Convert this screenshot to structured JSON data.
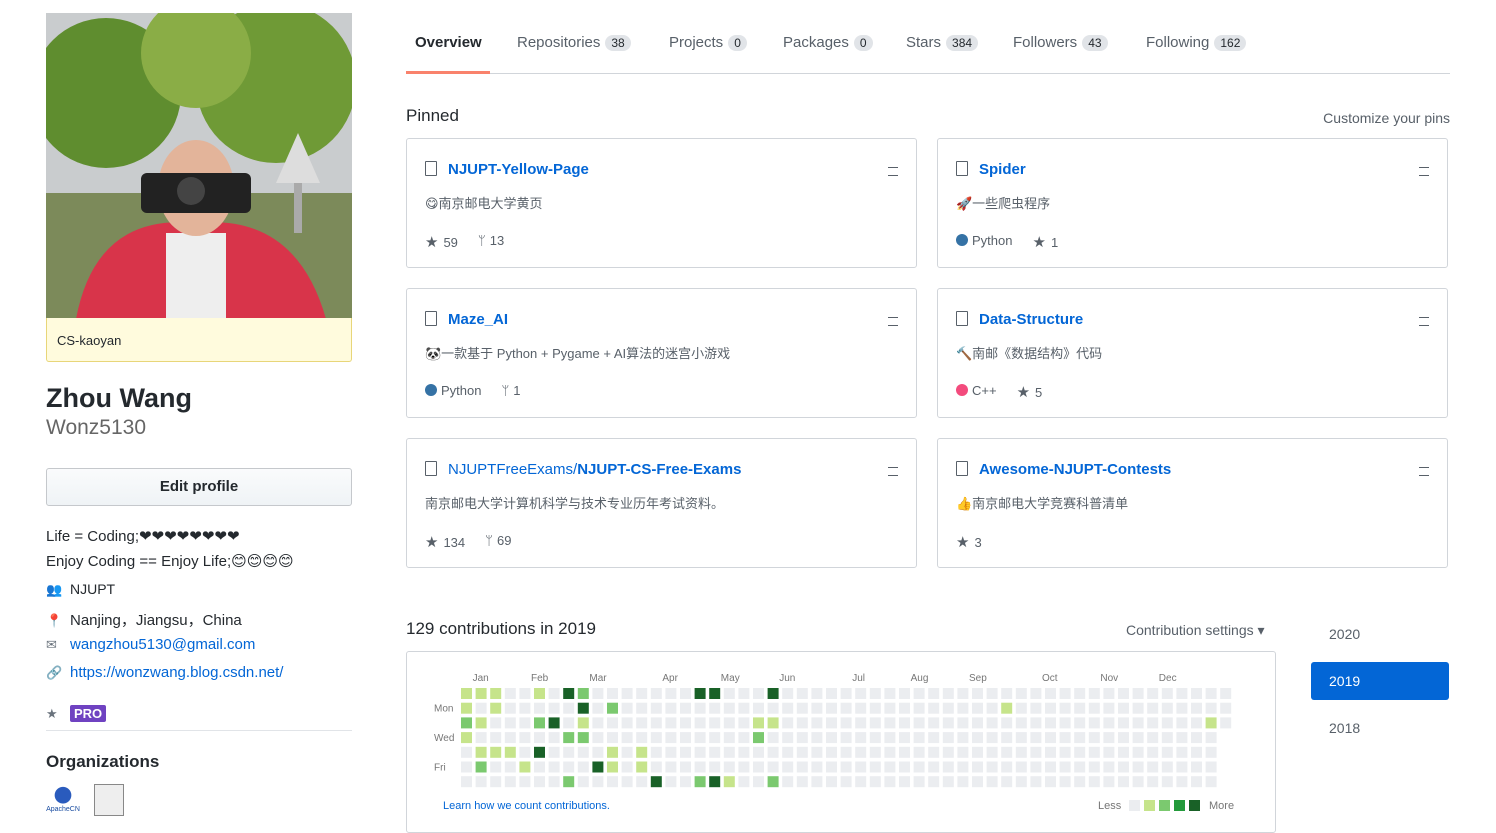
{
  "profile": {
    "status": "CS-kaoyan",
    "name": "Zhou Wang",
    "username": "Wonz5130",
    "edit": "Edit profile",
    "bio": [
      "Life = Coding;❤❤❤❤❤❤❤❤",
      "Enjoy Coding == Enjoy Life;😊😊😊😊"
    ],
    "org": "NJUPT",
    "location": "Nanjing，Jiangsu，China",
    "email": "wangzhou5130@gmail.com",
    "blog": "https://wonzwang.blog.csdn.net/",
    "badge": "PRO",
    "organizations_title": "Organizations",
    "org_logo": "ApacheCN"
  },
  "tabs": [
    {
      "label": "Overview"
    },
    {
      "label": "Repositories",
      "count": 38
    },
    {
      "label": "Projects",
      "count": 0
    },
    {
      "label": "Packages",
      "count": 0
    },
    {
      "label": "Stars",
      "count": 384
    },
    {
      "label": "Followers",
      "count": 43
    },
    {
      "label": "Following",
      "count": 162
    }
  ],
  "pinned": {
    "title": "Pinned",
    "customize": "Customize your pins",
    "repos": [
      {
        "name": "NJUPT-Yellow-Page",
        "description": "😋南京邮电大学黄页",
        "stars": 59,
        "forks": 13
      },
      {
        "name": "Spider",
        "description": "🚀一些爬虫程序",
        "language": "Python",
        "language_color": "#3572A5",
        "stars": 1
      },
      {
        "name": "Maze_AI",
        "description": "🐼一款基于 Python + Pygame + AI算法的迷宫小游戏",
        "language": "Python",
        "language_color": "#3572A5",
        "forks": 1
      },
      {
        "name": "Data-Structure",
        "description": "🔨南邮《数据结构》代码",
        "language": "C++",
        "language_color": "#f34b7d",
        "stars": 5
      },
      {
        "owner": "NJUPTFreeExams/",
        "name": "NJUPT-CS-Free-Exams",
        "description": "南京邮电大学计算机科学与技术专业历年考试资料。",
        "stars": 134,
        "forks": 69
      },
      {
        "name": "Awesome-NJUPT-Contests",
        "description": "👍南京邮电大学竞赛科普清单",
        "stars": 3
      }
    ]
  },
  "contributions": {
    "title": "129 contributions in 2019",
    "settings": "Contribution settings ▾",
    "months": [
      "Jan",
      "Feb",
      "Mar",
      "Apr",
      "May",
      "Jun",
      "Jul",
      "Aug",
      "Sep",
      "Oct",
      "Nov",
      "Dec"
    ],
    "days": [
      "Mon",
      "Wed",
      "Fri"
    ],
    "learn": "Learn how we count contributions.",
    "less": "Less",
    "more": "More",
    "level_colors": [
      "#ebedf0",
      "#c6e48b",
      "#7bc96f",
      "#239a3b",
      "#196127"
    ],
    "weeks": [
      [
        1,
        1,
        2,
        1,
        0,
        0,
        0
      ],
      [
        1,
        0,
        1,
        0,
        1,
        2,
        0
      ],
      [
        1,
        1,
        0,
        0,
        1,
        0,
        0
      ],
      [
        0,
        0,
        0,
        0,
        1,
        0,
        0
      ],
      [
        0,
        0,
        0,
        0,
        0,
        1,
        0
      ],
      [
        1,
        0,
        2,
        0,
        4,
        0,
        0
      ],
      [
        0,
        0,
        4,
        0,
        0,
        0,
        0
      ],
      [
        4,
        0,
        0,
        2,
        0,
        0,
        2
      ],
      [
        2,
        4,
        1,
        2,
        0,
        0,
        0
      ],
      [
        0,
        0,
        0,
        0,
        0,
        4,
        0
      ],
      [
        0,
        2,
        0,
        0,
        1,
        1,
        0
      ],
      [
        0,
        0,
        0,
        0,
        0,
        0,
        0
      ],
      [
        0,
        0,
        0,
        0,
        1,
        1,
        0
      ],
      [
        0,
        0,
        0,
        0,
        0,
        0,
        4
      ],
      [
        0,
        0,
        0,
        0,
        0,
        0,
        0
      ],
      [
        0,
        0,
        0,
        0,
        0,
        0,
        0
      ],
      [
        4,
        0,
        0,
        0,
        0,
        0,
        2
      ],
      [
        4,
        0,
        0,
        0,
        0,
        0,
        4
      ],
      [
        0,
        0,
        0,
        0,
        0,
        0,
        1
      ],
      [
        0,
        0,
        0,
        0,
        0,
        0,
        0
      ],
      [
        0,
        0,
        1,
        2,
        0,
        0,
        0
      ],
      [
        4,
        0,
        1,
        0,
        0,
        0,
        2
      ],
      [
        0,
        0,
        0,
        0,
        0,
        0,
        0
      ],
      [
        0,
        0,
        0,
        0,
        0,
        0,
        0
      ],
      [
        0,
        0,
        0,
        0,
        0,
        0,
        0
      ],
      [
        0,
        0,
        0,
        0,
        0,
        0,
        0
      ],
      [
        0,
        0,
        0,
        0,
        0,
        0,
        0
      ],
      [
        0,
        0,
        0,
        0,
        0,
        0,
        0
      ],
      [
        0,
        0,
        0,
        0,
        0,
        0,
        0
      ],
      [
        0,
        0,
        0,
        0,
        0,
        0,
        0
      ],
      [
        0,
        0,
        0,
        0,
        0,
        0,
        0
      ],
      [
        0,
        0,
        0,
        0,
        0,
        0,
        0
      ],
      [
        0,
        0,
        0,
        0,
        0,
        0,
        0
      ],
      [
        0,
        0,
        0,
        0,
        0,
        0,
        0
      ],
      [
        0,
        0,
        0,
        0,
        0,
        0,
        0
      ],
      [
        0,
        0,
        0,
        0,
        0,
        0,
        0
      ],
      [
        0,
        0,
        0,
        0,
        0,
        0,
        0
      ],
      [
        0,
        1,
        0,
        0,
        0,
        0,
        0
      ],
      [
        0,
        0,
        0,
        0,
        0,
        0,
        0
      ],
      [
        0,
        0,
        0,
        0,
        0,
        0,
        0
      ],
      [
        0,
        0,
        0,
        0,
        0,
        0,
        0
      ],
      [
        0,
        0,
        0,
        0,
        0,
        0,
        0
      ],
      [
        0,
        0,
        0,
        0,
        0,
        0,
        0
      ],
      [
        0,
        0,
        0,
        0,
        0,
        0,
        0
      ],
      [
        0,
        0,
        0,
        0,
        0,
        0,
        0
      ],
      [
        0,
        0,
        0,
        0,
        0,
        0,
        0
      ],
      [
        0,
        0,
        0,
        0,
        0,
        0,
        0
      ],
      [
        0,
        0,
        0,
        0,
        0,
        0,
        0
      ],
      [
        0,
        0,
        0,
        0,
        0,
        0,
        0
      ],
      [
        0,
        0,
        0,
        0,
        0,
        0,
        0
      ],
      [
        0,
        0,
        0,
        0,
        0,
        0,
        0
      ],
      [
        0,
        0,
        1,
        0,
        0,
        0,
        0
      ],
      [
        0,
        0,
        0
      ]
    ],
    "years": [
      {
        "label": "2020"
      },
      {
        "label": "2019",
        "selected": true
      },
      {
        "label": "2018"
      }
    ]
  }
}
